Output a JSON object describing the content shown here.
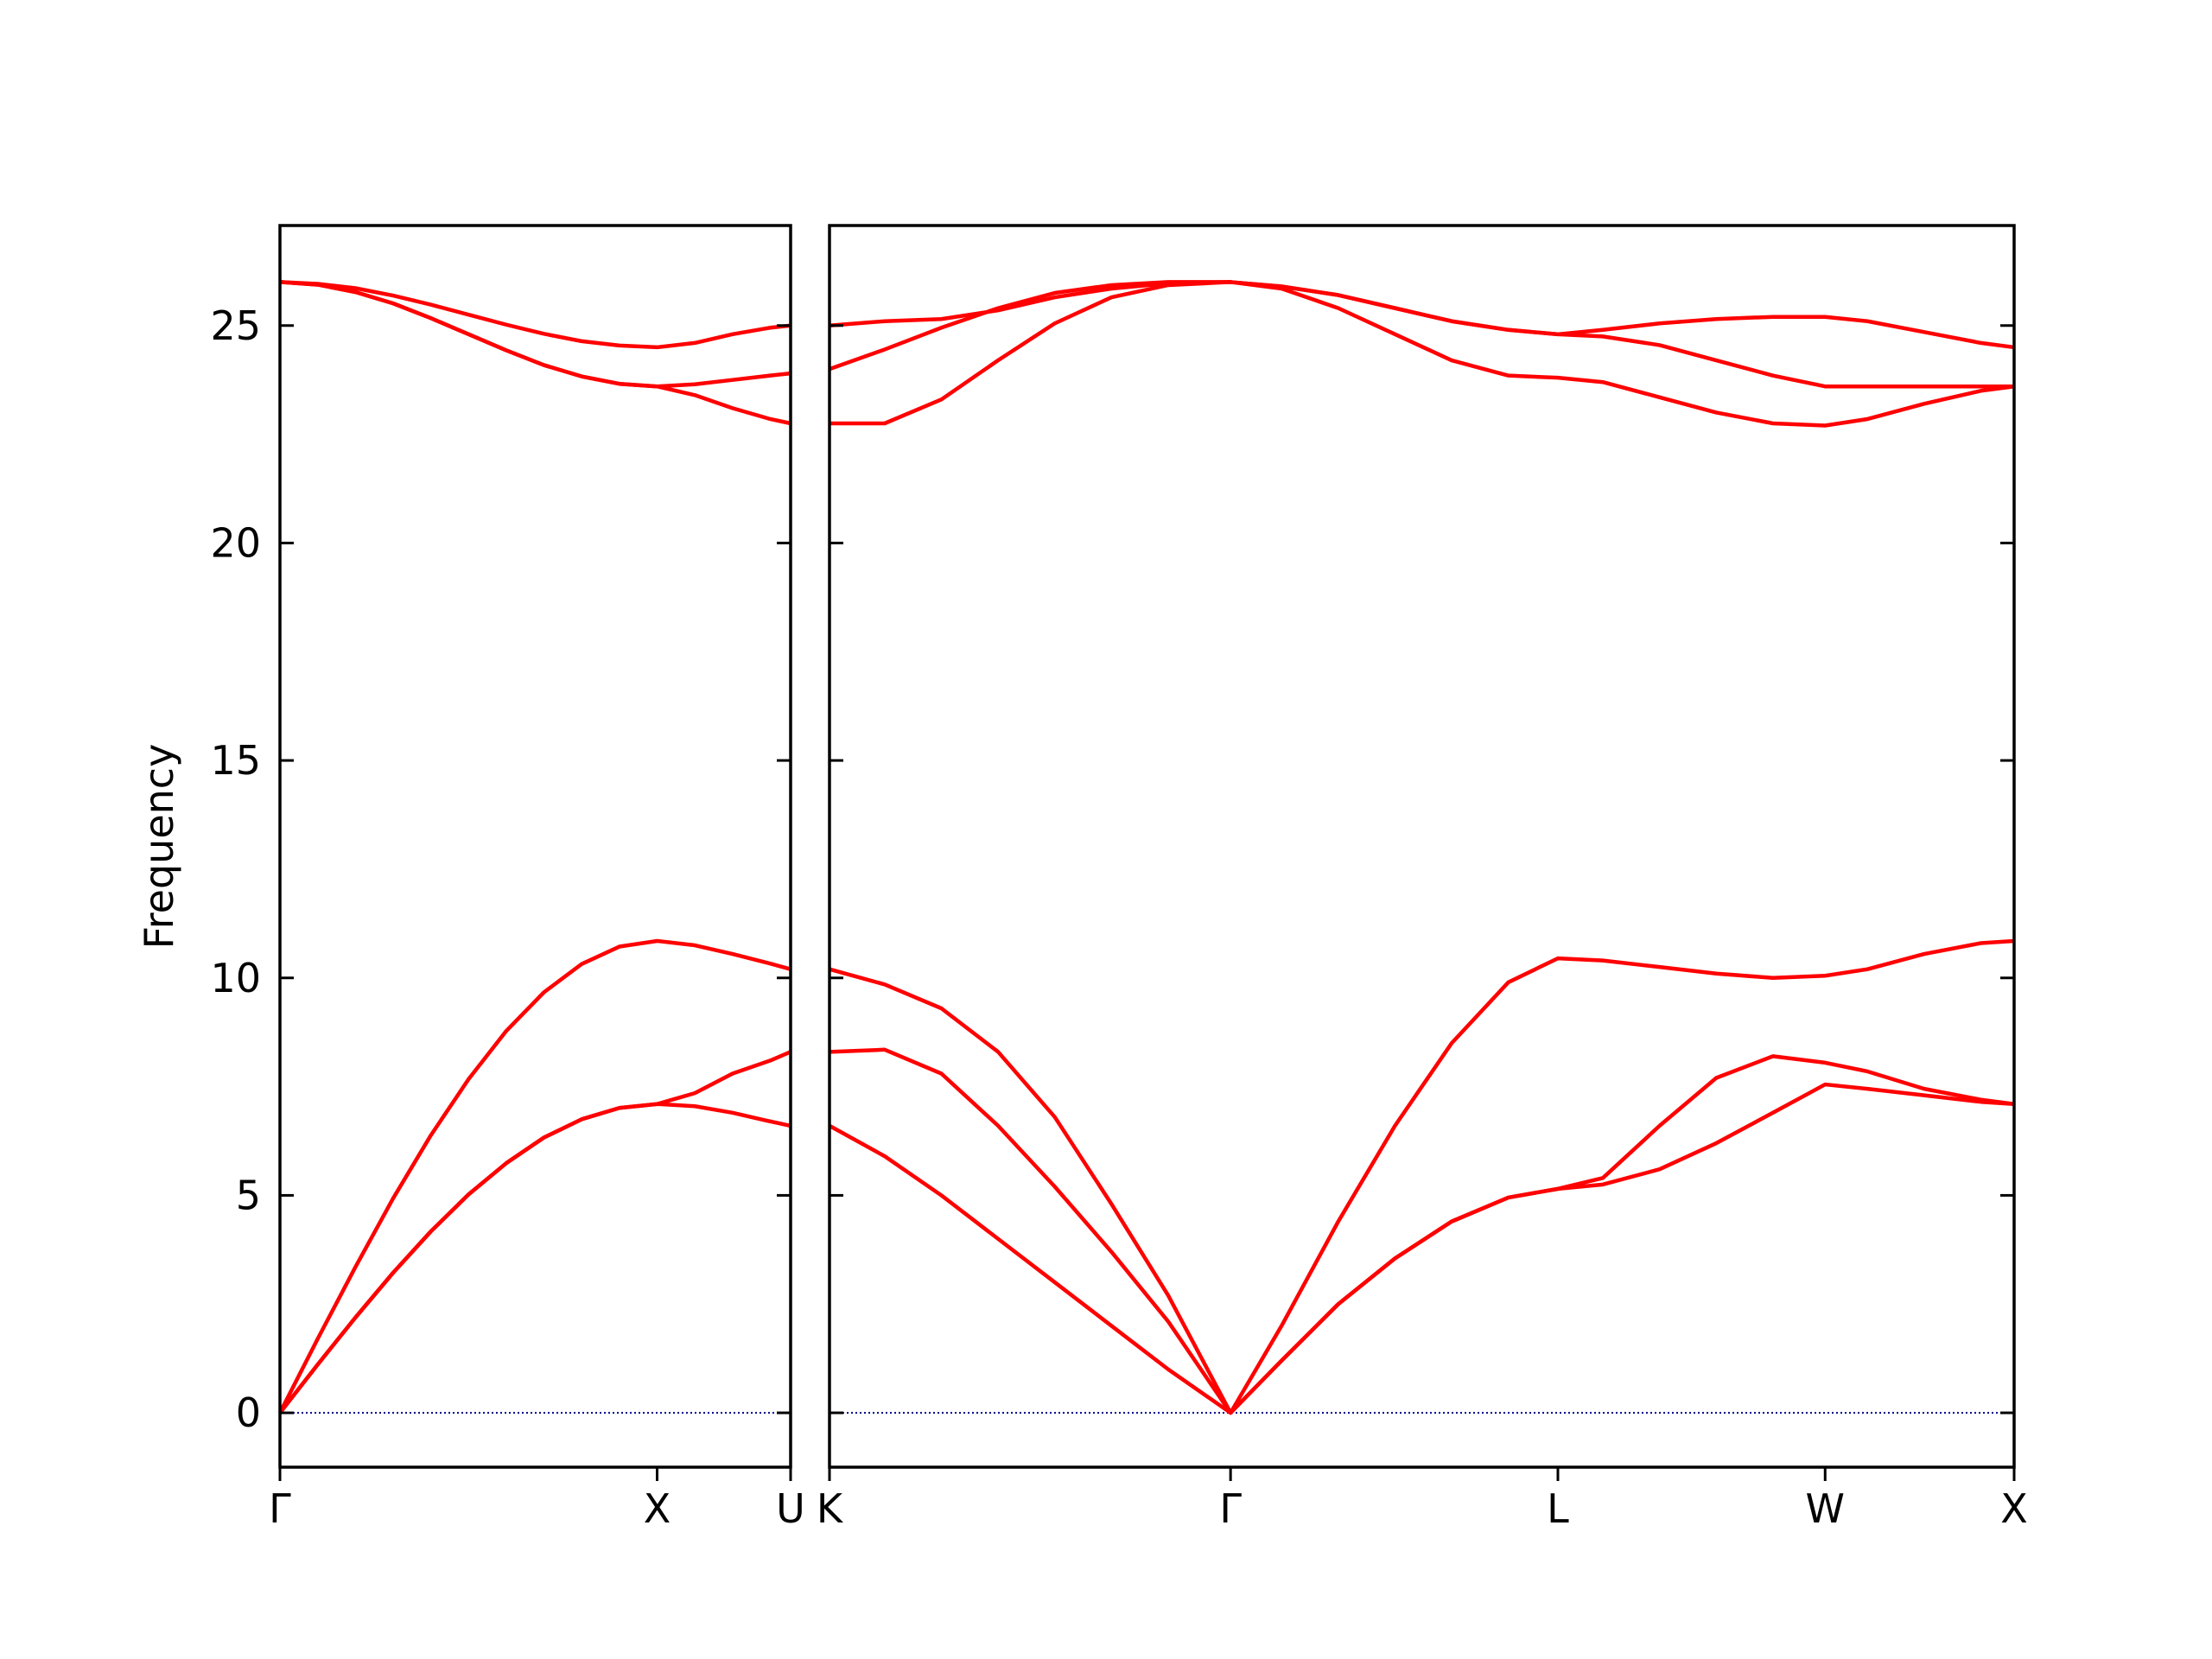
{
  "chart_data": [
    {
      "type": "line",
      "ylabel": "Frequency",
      "x": [
        0,
        0.1,
        0.2,
        0.3,
        0.4,
        0.5,
        0.6,
        0.7,
        0.8,
        0.9,
        1.0,
        1.1,
        1.2,
        1.3,
        1.354
      ],
      "xlim": [
        0,
        1.354
      ],
      "xticks": [
        {
          "value": 0,
          "label": "Γ"
        },
        {
          "value": 1.0,
          "label": "X"
        },
        {
          "value": 1.354,
          "label": "U"
        }
      ],
      "ylim": [
        -1.25,
        27.3
      ],
      "yticks": [
        0,
        5,
        10,
        15,
        20,
        25
      ],
      "ytick_labels": true,
      "zero_line_color": "#00008b",
      "series": [
        {
          "color": "#ff0000",
          "values": [
            0,
            1.11,
            2.19,
            3.22,
            4.17,
            5.02,
            5.74,
            6.33,
            6.75,
            7.01,
            7.1,
            7.05,
            6.9,
            6.7,
            6.6
          ]
        },
        {
          "color": "#ff0000",
          "values": [
            0,
            1.11,
            2.19,
            3.22,
            4.17,
            5.02,
            5.74,
            6.33,
            6.75,
            7.01,
            7.1,
            7.35,
            7.8,
            8.1,
            8.3
          ]
        },
        {
          "color": "#ff0000",
          "values": [
            0,
            1.7,
            3.35,
            4.93,
            6.38,
            7.67,
            8.78,
            9.67,
            10.32,
            10.72,
            10.85,
            10.75,
            10.55,
            10.33,
            10.2
          ]
        },
        {
          "color": "#ff0000",
          "values": [
            26.0,
            25.94,
            25.77,
            25.51,
            25.17,
            24.8,
            24.43,
            24.09,
            23.83,
            23.66,
            23.6,
            23.4,
            23.1,
            22.85,
            22.75
          ]
        },
        {
          "color": "#ff0000",
          "values": [
            26.0,
            25.94,
            25.77,
            25.51,
            25.17,
            24.8,
            24.43,
            24.09,
            23.83,
            23.66,
            23.6,
            23.65,
            23.75,
            23.85,
            23.9
          ]
        },
        {
          "color": "#ff0000",
          "values": [
            26.0,
            25.96,
            25.86,
            25.69,
            25.48,
            25.25,
            25.02,
            24.81,
            24.64,
            24.54,
            24.5,
            24.6,
            24.8,
            24.95,
            25.0
          ]
        }
      ]
    },
    {
      "type": "line",
      "x": [
        1.354,
        1.5,
        1.65,
        1.8,
        1.95,
        2.1,
        2.25,
        2.415,
        2.55,
        2.7,
        2.85,
        3.0,
        3.15,
        3.281,
        3.4,
        3.55,
        3.7,
        3.85,
        3.988,
        4.1,
        4.25,
        4.4,
        4.488
      ],
      "xlim": [
        1.354,
        4.488
      ],
      "xticks": [
        {
          "value": 1.354,
          "label": "K"
        },
        {
          "value": 2.415,
          "label": "Γ"
        },
        {
          "value": 3.281,
          "label": "L"
        },
        {
          "value": 3.988,
          "label": "W"
        },
        {
          "value": 4.488,
          "label": "X"
        }
      ],
      "ylim": [
        -1.25,
        27.3
      ],
      "yticks": [
        0,
        5,
        10,
        15,
        20,
        25
      ],
      "ytick_labels": false,
      "zero_line_color": "#00008b",
      "series": [
        {
          "color": "#ff0000",
          "values": [
            6.6,
            5.9,
            5.0,
            4.0,
            3.0,
            2.0,
            1.0,
            0,
            1.2,
            2.5,
            3.55,
            4.4,
            4.95,
            5.15,
            5.25,
            5.6,
            6.2,
            6.9,
            7.55,
            7.45,
            7.3,
            7.15,
            7.1
          ]
        },
        {
          "color": "#ff0000",
          "values": [
            8.3,
            8.35,
            7.8,
            6.6,
            5.2,
            3.7,
            2.1,
            0,
            1.2,
            2.5,
            3.55,
            4.4,
            4.95,
            5.15,
            5.4,
            6.6,
            7.7,
            8.2,
            8.05,
            7.85,
            7.45,
            7.2,
            7.1
          ]
        },
        {
          "color": "#ff0000",
          "values": [
            10.2,
            9.85,
            9.3,
            8.3,
            6.8,
            4.8,
            2.7,
            0,
            2.0,
            4.4,
            6.6,
            8.5,
            9.9,
            10.45,
            10.4,
            10.25,
            10.1,
            10.0,
            10.05,
            10.2,
            10.55,
            10.8,
            10.85
          ]
        },
        {
          "color": "#ff0000",
          "values": [
            22.75,
            22.75,
            23.3,
            24.2,
            25.05,
            25.65,
            25.93,
            26.0,
            25.85,
            25.4,
            24.8,
            24.2,
            23.85,
            23.8,
            23.7,
            23.35,
            23.0,
            22.75,
            22.7,
            22.85,
            23.2,
            23.5,
            23.6
          ]
        },
        {
          "color": "#ff0000",
          "values": [
            24.0,
            24.45,
            24.95,
            25.4,
            25.75,
            25.93,
            26.0,
            26.0,
            25.9,
            25.7,
            25.4,
            25.1,
            24.9,
            24.8,
            24.75,
            24.55,
            24.2,
            23.85,
            23.6,
            23.6,
            23.6,
            23.6,
            23.6
          ]
        },
        {
          "color": "#ff0000",
          "values": [
            25.0,
            25.1,
            25.15,
            25.35,
            25.65,
            25.85,
            25.97,
            26.0,
            25.9,
            25.7,
            25.4,
            25.1,
            24.9,
            24.8,
            24.9,
            25.05,
            25.15,
            25.2,
            25.2,
            25.1,
            24.85,
            24.6,
            24.5
          ]
        }
      ]
    }
  ]
}
